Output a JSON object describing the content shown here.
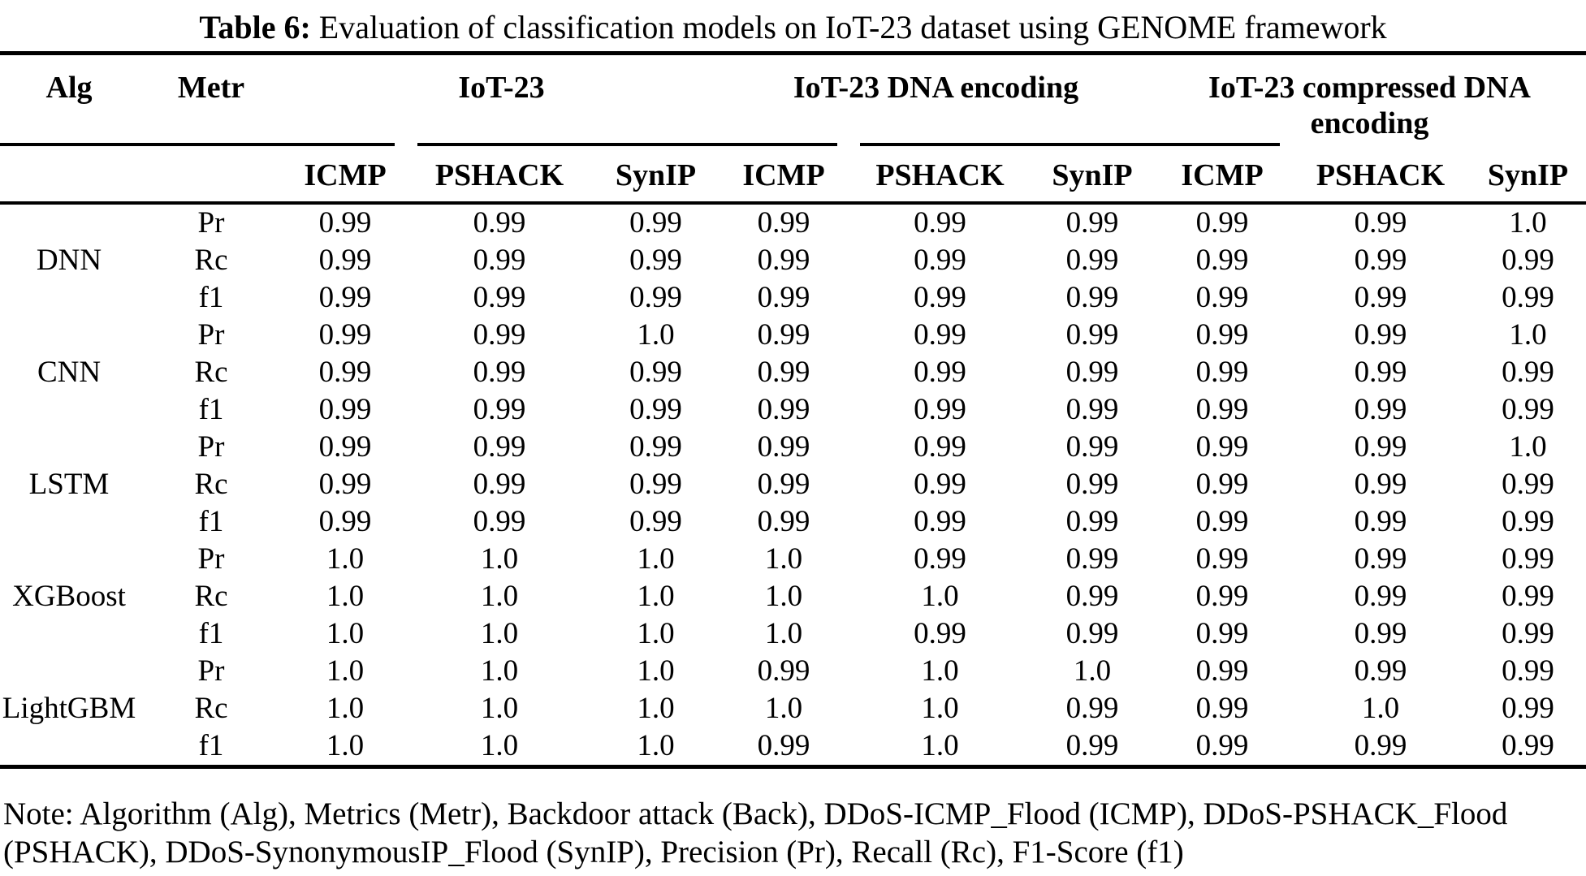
{
  "title": {
    "label": "Table 6:",
    "text": "Evaluation of classification models on IoT-23 dataset using GENOME framework"
  },
  "table": {
    "col_headers": {
      "alg": "Alg",
      "metr": "Metr"
    },
    "groups": [
      {
        "label": "IoT-23"
      },
      {
        "label": "IoT-23 DNA encoding"
      },
      {
        "label": "IoT-23 compressed DNA encoding"
      }
    ],
    "sub_headers": [
      "ICMP",
      "PSHACK",
      "SynIP",
      "ICMP",
      "PSHACK",
      "SynIP",
      "ICMP",
      "PSHACK",
      "SynIP"
    ],
    "rows": [
      {
        "alg": "DNN",
        "metrics": [
          {
            "name": "Pr",
            "values": [
              "0.99",
              "0.99",
              "0.99",
              "0.99",
              "0.99",
              "0.99",
              "0.99",
              "0.99",
              "1.0"
            ]
          },
          {
            "name": "Rc",
            "values": [
              "0.99",
              "0.99",
              "0.99",
              "0.99",
              "0.99",
              "0.99",
              "0.99",
              "0.99",
              "0.99"
            ]
          },
          {
            "name": "f1",
            "values": [
              "0.99",
              "0.99",
              "0.99",
              "0.99",
              "0.99",
              "0.99",
              "0.99",
              "0.99",
              "0.99"
            ]
          }
        ]
      },
      {
        "alg": "CNN",
        "metrics": [
          {
            "name": "Pr",
            "values": [
              "0.99",
              "0.99",
              "1.0",
              "0.99",
              "0.99",
              "0.99",
              "0.99",
              "0.99",
              "1.0"
            ]
          },
          {
            "name": "Rc",
            "values": [
              "0.99",
              "0.99",
              "0.99",
              "0.99",
              "0.99",
              "0.99",
              "0.99",
              "0.99",
              "0.99"
            ]
          },
          {
            "name": "f1",
            "values": [
              "0.99",
              "0.99",
              "0.99",
              "0.99",
              "0.99",
              "0.99",
              "0.99",
              "0.99",
              "0.99"
            ]
          }
        ]
      },
      {
        "alg": "LSTM",
        "metrics": [
          {
            "name": "Pr",
            "values": [
              "0.99",
              "0.99",
              "0.99",
              "0.99",
              "0.99",
              "0.99",
              "0.99",
              "0.99",
              "1.0"
            ]
          },
          {
            "name": "Rc",
            "values": [
              "0.99",
              "0.99",
              "0.99",
              "0.99",
              "0.99",
              "0.99",
              "0.99",
              "0.99",
              "0.99"
            ]
          },
          {
            "name": "f1",
            "values": [
              "0.99",
              "0.99",
              "0.99",
              "0.99",
              "0.99",
              "0.99",
              "0.99",
              "0.99",
              "0.99"
            ]
          }
        ]
      },
      {
        "alg": "XGBoost",
        "metrics": [
          {
            "name": "Pr",
            "values": [
              "1.0",
              "1.0",
              "1.0",
              "1.0",
              "0.99",
              "0.99",
              "0.99",
              "0.99",
              "0.99"
            ]
          },
          {
            "name": "Rc",
            "values": [
              "1.0",
              "1.0",
              "1.0",
              "1.0",
              "1.0",
              "0.99",
              "0.99",
              "0.99",
              "0.99"
            ]
          },
          {
            "name": "f1",
            "values": [
              "1.0",
              "1.0",
              "1.0",
              "1.0",
              "0.99",
              "0.99",
              "0.99",
              "0.99",
              "0.99"
            ]
          }
        ]
      },
      {
        "alg": "LightGBM",
        "metrics": [
          {
            "name": "Pr",
            "values": [
              "1.0",
              "1.0",
              "1.0",
              "0.99",
              "1.0",
              "1.0",
              "0.99",
              "0.99",
              "0.99"
            ]
          },
          {
            "name": "Rc",
            "values": [
              "1.0",
              "1.0",
              "1.0",
              "1.0",
              "1.0",
              "0.99",
              "0.99",
              "1.0",
              "0.99"
            ]
          },
          {
            "name": "f1",
            "values": [
              "1.0",
              "1.0",
              "1.0",
              "0.99",
              "1.0",
              "0.99",
              "0.99",
              "0.99",
              "0.99"
            ]
          }
        ]
      }
    ]
  },
  "note": "Note: Algorithm (Alg), Metrics (Metr), Backdoor attack (Back), DDoS-ICMP_Flood (ICMP), DDoS-PSHACK_Flood (PSHACK), DDoS-SynonymousIP_Flood (SynIP), Precision (Pr), Recall (Rc), F1-Score (f1)"
}
